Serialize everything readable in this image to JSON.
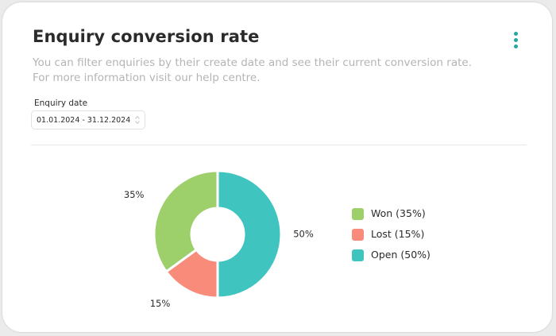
{
  "card": {
    "title": "Enquiry conversion rate",
    "menu_icon": "kebab-menu-icon",
    "description_line1": "You can filter enquiries by their create date and see their current conversion rate.",
    "description_line2": "For more information visit our help centre."
  },
  "filter": {
    "label": "Enquiry date",
    "value": "01.01.2024 - 31.12.2024",
    "icon": "sort-arrows-icon"
  },
  "colors": {
    "accent": "#24a9a0",
    "won": "#9dcf6b",
    "lost": "#f98b7a",
    "open": "#3fc4bf"
  },
  "chart_data": {
    "type": "pie",
    "variant": "donut",
    "categories": [
      "Won",
      "Lost",
      "Open"
    ],
    "values": [
      35,
      15,
      50
    ],
    "unit": "%",
    "data_labels": [
      "35%",
      "15%",
      "50%"
    ],
    "legend": [
      "Won (35%)",
      "Lost (15%)",
      "Open (50%)"
    ],
    "legend_position": "right",
    "colors": [
      "#9dcf6b",
      "#f98b7a",
      "#3fc4bf"
    ]
  }
}
